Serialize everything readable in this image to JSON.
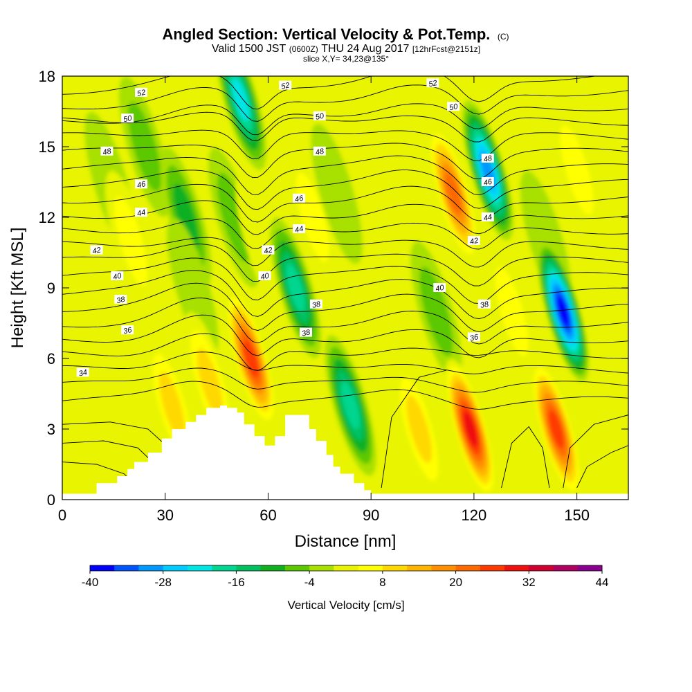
{
  "chart_data": {
    "type": "heatmap",
    "title": "Angled Section: Vertical Velocity & Pot.Temp.",
    "title_suffix": "(C)",
    "subtitle_parts": [
      "Valid 1500 JST",
      "(0600Z)",
      "THU 24 Aug 2017",
      "[12hrFcst@2151z]"
    ],
    "slice_label": "slice X,Y= 34,23@135°",
    "xlabel": "Distance [nm]",
    "ylabel": "Height [Kft MSL]",
    "xlim": [
      0,
      165
    ],
    "ylim": [
      0,
      18
    ],
    "x_ticks": [
      0,
      30,
      60,
      90,
      120,
      150
    ],
    "y_ticks": [
      0,
      3,
      6,
      9,
      12,
      15,
      18
    ],
    "colorbar": {
      "label": "Vertical Velocity [cm/s]",
      "tick_labels": [
        "-40",
        "-28",
        "-16",
        "-4",
        "8",
        "20",
        "32",
        "44"
      ],
      "levels": [
        -40,
        -36,
        -32,
        -28,
        -24,
        -20,
        -16,
        -12,
        -8,
        -4,
        0,
        4,
        8,
        12,
        16,
        20,
        24,
        28,
        32,
        36,
        40,
        44
      ],
      "colors": [
        "#0000ff",
        "#0055ff",
        "#0099ff",
        "#00ccff",
        "#00e5e5",
        "#00d68f",
        "#00c060",
        "#10b020",
        "#5cc800",
        "#a8e000",
        "#e8f400",
        "#ffff00",
        "#ffd800",
        "#ffb400",
        "#ff9000",
        "#ff6a00",
        "#ff3a00",
        "#f01010",
        "#d00030",
        "#b00060",
        "#8a0090"
      ]
    },
    "vertical_velocity_cells": [
      {
        "x": 14,
        "y": 13.5,
        "w": -6
      },
      {
        "x": 20,
        "y": 11,
        "w": 10
      },
      {
        "x": 24,
        "y": 15,
        "w": -8
      },
      {
        "x": 36,
        "y": 12,
        "w": -14
      },
      {
        "x": 38,
        "y": 9,
        "w": -6
      },
      {
        "x": 32,
        "y": 4,
        "w": 14
      },
      {
        "x": 43,
        "y": 5,
        "w": 12
      },
      {
        "x": 47,
        "y": 14,
        "w": 6
      },
      {
        "x": 52,
        "y": 17,
        "w": -24
      },
      {
        "x": 50,
        "y": 12,
        "w": -10
      },
      {
        "x": 55,
        "y": 6,
        "w": 30
      },
      {
        "x": 58,
        "y": 11,
        "w": 6
      },
      {
        "x": 68,
        "y": 9,
        "w": -20
      },
      {
        "x": 73,
        "y": 12,
        "w": 10
      },
      {
        "x": 84,
        "y": 4,
        "w": -20
      },
      {
        "x": 80,
        "y": 13,
        "w": -6
      },
      {
        "x": 104,
        "y": 3,
        "w": 14
      },
      {
        "x": 109,
        "y": 8,
        "w": -10
      },
      {
        "x": 114,
        "y": 13,
        "w": 24
      },
      {
        "x": 119,
        "y": 3,
        "w": 34
      },
      {
        "x": 124,
        "y": 14,
        "w": -32
      },
      {
        "x": 131,
        "y": 8,
        "w": 8
      },
      {
        "x": 141,
        "y": 11,
        "w": -6
      },
      {
        "x": 144,
        "y": 3,
        "w": 30
      },
      {
        "x": 146,
        "y": 8,
        "w": -40
      },
      {
        "x": 150,
        "y": 14,
        "w": 10
      }
    ],
    "theta_contours": [
      {
        "label": "34",
        "label_x": 6,
        "label_y": 5.4
      },
      {
        "label": "36",
        "label_x": 19,
        "label_y": 7.2
      },
      {
        "label": "36",
        "label_x": 120,
        "label_y": 6.9
      },
      {
        "label": "38",
        "label_x": 17,
        "label_y": 8.5
      },
      {
        "label": "38",
        "label_x": 71,
        "label_y": 7.1
      },
      {
        "label": "38",
        "label_x": 74,
        "label_y": 8.3
      },
      {
        "label": "38",
        "label_x": 123,
        "label_y": 8.3
      },
      {
        "label": "40",
        "label_x": 16,
        "label_y": 9.5
      },
      {
        "label": "40",
        "label_x": 59,
        "label_y": 9.5
      },
      {
        "label": "40",
        "label_x": 110,
        "label_y": 9.0
      },
      {
        "label": "42",
        "label_x": 10,
        "label_y": 10.6
      },
      {
        "label": "42",
        "label_x": 60,
        "label_y": 10.6
      },
      {
        "label": "42",
        "label_x": 120,
        "label_y": 11.0
      },
      {
        "label": "44",
        "label_x": 23,
        "label_y": 12.2
      },
      {
        "label": "44",
        "label_x": 69,
        "label_y": 11.5
      },
      {
        "label": "44",
        "label_x": 124,
        "label_y": 12.0
      },
      {
        "label": "46",
        "label_x": 23,
        "label_y": 13.4
      },
      {
        "label": "46",
        "label_x": 69,
        "label_y": 12.8
      },
      {
        "label": "46",
        "label_x": 124,
        "label_y": 13.5
      },
      {
        "label": "48",
        "label_x": 13,
        "label_y": 14.8
      },
      {
        "label": "48",
        "label_x": 75,
        "label_y": 14.8
      },
      {
        "label": "48",
        "label_x": 124,
        "label_y": 14.5
      },
      {
        "label": "50",
        "label_x": 19,
        "label_y": 16.2
      },
      {
        "label": "50",
        "label_x": 75,
        "label_y": 16.3
      },
      {
        "label": "50",
        "label_x": 114,
        "label_y": 16.7
      },
      {
        "label": "52",
        "label_x": 23,
        "label_y": 17.3
      },
      {
        "label": "52",
        "label_x": 65,
        "label_y": 17.6
      },
      {
        "label": "52",
        "label_x": 108,
        "label_y": 17.7
      }
    ],
    "terrain": [
      [
        10,
        0.7
      ],
      [
        16,
        1.0
      ],
      [
        19,
        1.3
      ],
      [
        21,
        1.6
      ],
      [
        25,
        2.0
      ],
      [
        29,
        2.6
      ],
      [
        32,
        3.0
      ],
      [
        36,
        3.3
      ],
      [
        39,
        3.6
      ],
      [
        42,
        3.9
      ],
      [
        46,
        4.0
      ],
      [
        48,
        3.9
      ],
      [
        51,
        3.7
      ],
      [
        53,
        3.2
      ],
      [
        56,
        2.7
      ],
      [
        59,
        2.3
      ],
      [
        62,
        2.7
      ],
      [
        65,
        3.6
      ],
      [
        70,
        3.6
      ],
      [
        72,
        3.0
      ],
      [
        74,
        2.5
      ],
      [
        77,
        1.9
      ],
      [
        79,
        1.4
      ],
      [
        81,
        1.1
      ],
      [
        85,
        0.7
      ],
      [
        88,
        0.4
      ],
      [
        90,
        0.0
      ]
    ]
  }
}
